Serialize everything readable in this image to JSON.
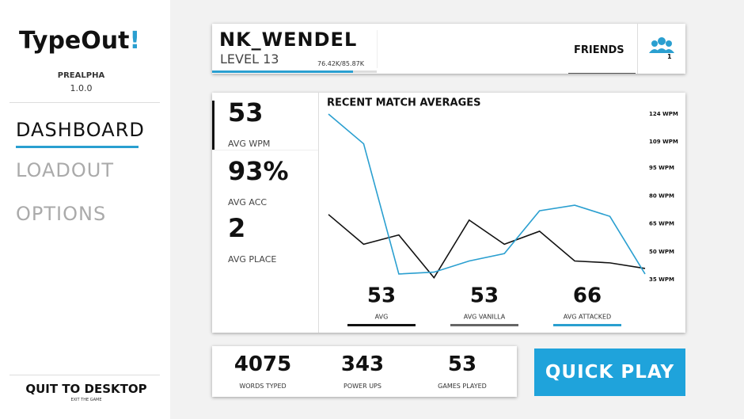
{
  "app": {
    "title_main": "TypeOut",
    "title_mark": "!",
    "build": "PREALPHA",
    "version": "1.0.0"
  },
  "nav": [
    "DASHBOARD",
    "LOADOUT",
    "OPTIONS"
  ],
  "quit": {
    "label": "QUIT TO DESKTOP",
    "sub": "EXIT THE GAME"
  },
  "profile": {
    "name": "NK_WENDEL",
    "level": "LEVEL 13",
    "xp": "76.42K/85.87K"
  },
  "friends": {
    "label": "FRIENDS",
    "count": "1"
  },
  "stats": [
    {
      "value": "53",
      "label": "AVG WPM"
    },
    {
      "value": "93%",
      "label": "AVG ACC"
    },
    {
      "value": "2",
      "label": "AVG PLACE"
    }
  ],
  "chart_data": {
    "type": "line",
    "title": "RECENT MATCH AVERAGES",
    "categories": [
      null,
      null,
      null,
      null,
      null,
      null,
      null,
      null,
      null,
      null
    ],
    "series": [
      {
        "name": "AVG",
        "color": "#111111",
        "values": [
          70,
          54,
          59,
          36,
          67,
          54,
          61,
          45,
          44,
          41
        ]
      },
      {
        "name": "AVG ATTACKED",
        "color": "#2a9fd0",
        "values": [
          124,
          108,
          38,
          39,
          45,
          49,
          72,
          75,
          69,
          38
        ]
      }
    ],
    "ylim": [
      35,
      124
    ],
    "yticks": [
      {
        "value": 124,
        "label": "124 WPM"
      },
      {
        "value": 109,
        "label": "109 WPM"
      },
      {
        "value": 95,
        "label": "95 WPM"
      },
      {
        "value": 80,
        "label": "80 WPM"
      },
      {
        "value": 65,
        "label": "65 WPM"
      },
      {
        "value": 50,
        "label": "50 WPM"
      },
      {
        "value": 35,
        "label": "35 WPM"
      }
    ],
    "summary": [
      {
        "value": 53,
        "label": "AVG",
        "color": "#111111"
      },
      {
        "value": 53,
        "label": "AVG VANILLA",
        "color": "#666666"
      },
      {
        "value": 66,
        "label": "AVG ATTACKED",
        "color": "#2a9fd0"
      }
    ]
  },
  "totals": [
    {
      "value": "4075",
      "label": "WORDS TYPED"
    },
    {
      "value": "343",
      "label": "POWER UPS"
    },
    {
      "value": "53",
      "label": "GAMES PLAYED"
    }
  ],
  "quick_play": "QUICK PLAY"
}
